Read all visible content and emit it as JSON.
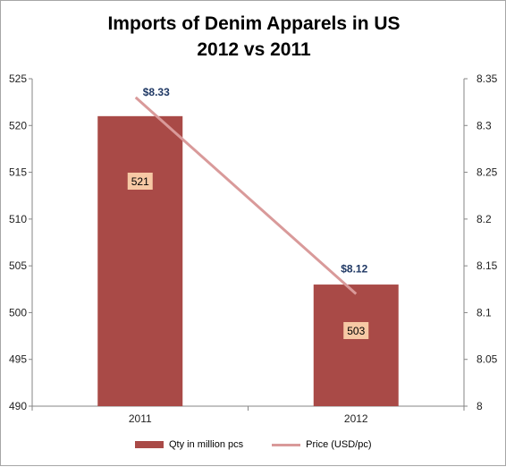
{
  "chart_data": {
    "type": "bar",
    "title": "Imports of Denim Apparels in US",
    "subtitle": "2012 vs 2011",
    "categories": [
      "2011",
      "2012"
    ],
    "series": [
      {
        "name": "Qty in million pcs",
        "type": "bar",
        "axis": "left",
        "color": "#a94a47",
        "values": [
          521,
          503
        ],
        "data_labels": [
          "521",
          "503"
        ]
      },
      {
        "name": "Price (USD/pc)",
        "type": "line",
        "axis": "right",
        "color": "#d99a9a",
        "values": [
          8.33,
          8.12
        ],
        "data_labels": [
          "$8.33",
          "$8.12"
        ]
      }
    ],
    "y_left": {
      "min": 490,
      "max": 525,
      "ticks": [
        "490",
        "495",
        "500",
        "505",
        "510",
        "515",
        "520",
        "525"
      ]
    },
    "y_right": {
      "min": 8,
      "max": 8.35,
      "ticks": [
        "8",
        "8.05",
        "8.1",
        "8.15",
        "8.2",
        "8.25",
        "8.3",
        "8.35"
      ]
    },
    "grid": false,
    "legend_position": "bottom"
  }
}
